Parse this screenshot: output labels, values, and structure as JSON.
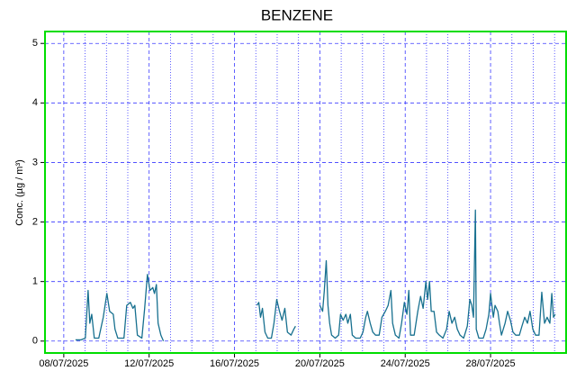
{
  "chart_data": {
    "type": "line",
    "title": "BENZENE",
    "y_label": "Conc. (µg / m³)",
    "xlim": [
      7.12,
      31.54
    ],
    "xticks": [
      {
        "value": 8,
        "label": "08/07/2025"
      },
      {
        "value": 12,
        "label": "12/07/2025"
      },
      {
        "value": 16,
        "label": "16/07/2025"
      },
      {
        "value": 20,
        "label": "20/07/2025"
      },
      {
        "value": 24,
        "label": "24/07/2025"
      },
      {
        "value": 28,
        "label": "28/07/2025"
      }
    ],
    "x_minor_ticks": [
      9,
      10,
      11,
      13,
      14,
      15,
      17,
      18,
      19,
      21,
      22,
      23,
      25,
      26,
      27,
      29,
      30,
      31
    ],
    "ylim": [
      -0.2,
      5.2
    ],
    "yticks": [
      0,
      1,
      2,
      3,
      4,
      5
    ],
    "grid": true,
    "frame_color": "#00dd00",
    "grid_color": "#3a3aff",
    "series": [
      {
        "color": "#17708f",
        "x": [
          8.55,
          8.8,
          9.01,
          9.14,
          9.22,
          9.31,
          9.43,
          9.64,
          9.85,
          10.02,
          10.15,
          10.32,
          10.4,
          10.53,
          10.82,
          10.95,
          11.12,
          11.24,
          11.33,
          11.45,
          11.66,
          11.79,
          11.92,
          12.04,
          12.17,
          12.25,
          12.34,
          12.42,
          12.55,
          12.67,
          15,
          17.05,
          17.14,
          17.22,
          17.31,
          17.43,
          17.56,
          17.73,
          17.85,
          17.98,
          18.11,
          18.23,
          18.36,
          18.48,
          18.65,
          18.78,
          18.86,
          19.5,
          20.0,
          20.13,
          20.21,
          20.3,
          20.38,
          20.46,
          20.55,
          20.72,
          20.88,
          20.97,
          21.09,
          21.22,
          21.31,
          21.43,
          21.52,
          21.68,
          21.89,
          22.02,
          22.15,
          22.23,
          22.36,
          22.48,
          22.61,
          22.78,
          22.91,
          23.07,
          23.2,
          23.33,
          23.41,
          23.54,
          23.71,
          23.83,
          23.96,
          24.08,
          24.17,
          24.25,
          24.42,
          24.59,
          24.72,
          24.84,
          24.97,
          25.05,
          25.14,
          25.22,
          25.35,
          25.47,
          25.6,
          25.77,
          25.94,
          26.06,
          26.19,
          26.32,
          26.44,
          26.57,
          26.74,
          26.91,
          27.03,
          27.12,
          27.2,
          27.29,
          27.33,
          27.45,
          27.66,
          27.79,
          27.92,
          28.0,
          28.13,
          28.21,
          28.34,
          28.42,
          28.51,
          28.68,
          28.8,
          28.93,
          29.05,
          29.18,
          29.35,
          29.47,
          29.6,
          29.73,
          29.85,
          29.98,
          30.11,
          30.27,
          30.4,
          30.53,
          30.65,
          30.78,
          30.87,
          30.95,
          31.03
        ],
        "values": [
          0.02,
          0.02,
          0.05,
          0.85,
          0.3,
          0.45,
          0.05,
          0.05,
          0.4,
          0.8,
          0.5,
          0.45,
          0.2,
          0.05,
          0.05,
          0.6,
          0.65,
          0.55,
          0.6,
          0.1,
          0.05,
          0.55,
          1.12,
          0.85,
          0.9,
          0.8,
          0.95,
          0.3,
          0.1,
          0.0,
          null,
          0.6,
          0.65,
          0.4,
          0.55,
          0.15,
          0.05,
          0.05,
          0.3,
          0.7,
          0.5,
          0.35,
          0.55,
          0.15,
          0.1,
          0.2,
          0.25,
          null,
          0.6,
          0.5,
          0.85,
          1.35,
          0.6,
          0.3,
          0.1,
          0.05,
          0.1,
          0.45,
          0.35,
          0.45,
          0.3,
          0.45,
          0.1,
          0.05,
          0.05,
          0.15,
          0.4,
          0.5,
          0.3,
          0.15,
          0.1,
          0.1,
          0.4,
          0.5,
          0.6,
          0.85,
          0.3,
          0.1,
          0.05,
          0.3,
          0.65,
          0.45,
          0.85,
          0.1,
          0.1,
          0.5,
          0.75,
          0.55,
          1.0,
          0.7,
          1.0,
          0.5,
          0.5,
          0.15,
          0.1,
          0.05,
          0.2,
          0.5,
          0.3,
          0.4,
          0.2,
          0.1,
          0.05,
          0.25,
          0.7,
          0.6,
          0.4,
          2.2,
          0.2,
          0.05,
          0.05,
          0.2,
          0.45,
          0.8,
          0.4,
          0.6,
          0.5,
          0.3,
          0.1,
          0.3,
          0.5,
          0.35,
          0.15,
          0.1,
          0.1,
          0.25,
          0.4,
          0.3,
          0.5,
          0.2,
          0.1,
          0.1,
          0.82,
          0.3,
          0.4,
          0.3,
          0.8,
          0.4,
          0.45
        ]
      }
    ]
  }
}
